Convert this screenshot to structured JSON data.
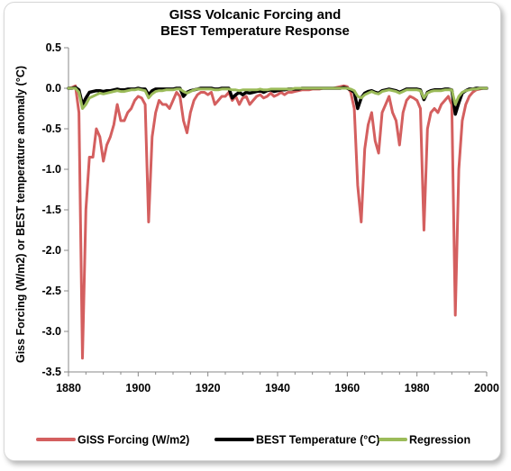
{
  "chart_data": {
    "type": "line",
    "title": [
      "GISS Volcanic Forcing and",
      "BEST Temperature Response"
    ],
    "xlabel": "",
    "ylabel": "Giss Forcing (W/m2) or BEST temperature anomaly (°C)",
    "xlim": [
      1880,
      2000
    ],
    "ylim": [
      -3.5,
      0.5
    ],
    "xticks": [
      1880,
      1900,
      1920,
      1940,
      1960,
      1980,
      2000
    ],
    "yticks": [
      0.5,
      0.0,
      -0.5,
      -1.0,
      -1.5,
      -2.0,
      -2.5,
      -3.0,
      -3.5
    ],
    "ytick_labels": [
      "0.5",
      "0.0",
      "-0.5",
      "-1.0",
      "-1.5",
      "-2.0",
      "-2.5",
      "-3.0",
      "-3.5"
    ],
    "grid": false,
    "legend_position": "bottom",
    "series": [
      {
        "name": "GISS Forcing (W/m2)",
        "color": "#d45f5f",
        "x": [
          1880,
          1881,
          1882,
          1883,
          1884,
          1885,
          1886,
          1887,
          1888,
          1889,
          1890,
          1891,
          1892,
          1893,
          1894,
          1895,
          1896,
          1897,
          1898,
          1899,
          1900,
          1901,
          1902,
          1903,
          1904,
          1905,
          1906,
          1907,
          1908,
          1909,
          1910,
          1911,
          1912,
          1913,
          1914,
          1915,
          1916,
          1917,
          1918,
          1919,
          1920,
          1921,
          1922,
          1923,
          1924,
          1925,
          1926,
          1927,
          1928,
          1929,
          1930,
          1931,
          1932,
          1933,
          1934,
          1935,
          1936,
          1937,
          1938,
          1939,
          1940,
          1941,
          1942,
          1943,
          1944,
          1945,
          1946,
          1947,
          1948,
          1949,
          1950,
          1951,
          1952,
          1953,
          1954,
          1955,
          1956,
          1957,
          1958,
          1959,
          1960,
          1961,
          1962,
          1963,
          1964,
          1965,
          1966,
          1967,
          1968,
          1969,
          1970,
          1971,
          1972,
          1973,
          1974,
          1975,
          1976,
          1977,
          1978,
          1979,
          1980,
          1981,
          1982,
          1983,
          1984,
          1985,
          1986,
          1987,
          1988,
          1989,
          1990,
          1991,
          1992,
          1993,
          1994,
          1995,
          1996,
          1997,
          1998,
          1999,
          2000
        ],
        "values": [
          0.0,
          0.01,
          0.03,
          -0.3,
          -3.33,
          -1.5,
          -0.85,
          -0.85,
          -0.5,
          -0.6,
          -0.9,
          -0.7,
          -0.6,
          -0.45,
          -0.2,
          -0.4,
          -0.4,
          -0.3,
          -0.25,
          -0.15,
          -0.1,
          -0.12,
          -0.2,
          -1.65,
          -0.6,
          -0.3,
          -0.15,
          -0.2,
          -0.2,
          -0.25,
          -0.15,
          -0.05,
          -0.1,
          -0.4,
          -0.55,
          -0.3,
          -0.15,
          -0.08,
          -0.05,
          -0.05,
          -0.08,
          -0.05,
          -0.2,
          -0.15,
          -0.1,
          -0.1,
          -0.05,
          -0.15,
          -0.1,
          -0.2,
          -0.12,
          -0.1,
          -0.2,
          -0.15,
          -0.1,
          -0.08,
          -0.12,
          -0.1,
          -0.06,
          -0.1,
          -0.08,
          -0.05,
          -0.08,
          -0.05,
          -0.05,
          -0.04,
          -0.03,
          -0.02,
          -0.02,
          -0.02,
          -0.01,
          -0.01,
          -0.01,
          0.0,
          0.0,
          0.0,
          0.0,
          0.01,
          0.02,
          0.03,
          0.02,
          -0.05,
          -0.25,
          -1.2,
          -1.65,
          -0.75,
          -0.45,
          -0.3,
          -0.65,
          -0.8,
          -0.3,
          -0.2,
          -0.1,
          -0.3,
          -0.4,
          -0.7,
          -0.3,
          -0.15,
          -0.1,
          -0.12,
          -0.15,
          -0.25,
          -1.75,
          -0.5,
          -0.3,
          -0.25,
          -0.3,
          -0.2,
          -0.15,
          -0.1,
          -0.2,
          -2.8,
          -1.0,
          -0.4,
          -0.2,
          -0.1,
          -0.05,
          -0.02,
          -0.01,
          0.0,
          0.0
        ]
      },
      {
        "name": "BEST Temperature (°C)",
        "color": "#000000",
        "x": [
          1880,
          1881,
          1882,
          1883,
          1884,
          1885,
          1886,
          1887,
          1888,
          1889,
          1890,
          1891,
          1892,
          1893,
          1894,
          1895,
          1896,
          1897,
          1898,
          1899,
          1900,
          1901,
          1902,
          1903,
          1904,
          1905,
          1906,
          1907,
          1908,
          1909,
          1910,
          1911,
          1912,
          1913,
          1914,
          1915,
          1916,
          1917,
          1918,
          1919,
          1920,
          1921,
          1922,
          1923,
          1924,
          1925,
          1926,
          1927,
          1928,
          1929,
          1930,
          1931,
          1932,
          1933,
          1934,
          1935,
          1936,
          1937,
          1938,
          1939,
          1940,
          1941,
          1942,
          1943,
          1944,
          1945,
          1946,
          1947,
          1948,
          1949,
          1950,
          1951,
          1952,
          1953,
          1954,
          1955,
          1956,
          1957,
          1958,
          1959,
          1960,
          1961,
          1962,
          1963,
          1964,
          1965,
          1966,
          1967,
          1968,
          1969,
          1970,
          1971,
          1972,
          1973,
          1974,
          1975,
          1976,
          1977,
          1978,
          1979,
          1980,
          1981,
          1982,
          1983,
          1984,
          1985,
          1986,
          1987,
          1988,
          1989,
          1990,
          1991,
          1992,
          1993,
          1994,
          1995,
          1996,
          1997,
          1998,
          1999,
          2000
        ],
        "values": [
          0.0,
          0.0,
          0.01,
          -0.02,
          -0.2,
          -0.12,
          -0.05,
          -0.04,
          -0.03,
          -0.03,
          -0.04,
          -0.03,
          -0.03,
          -0.02,
          -0.01,
          -0.02,
          -0.02,
          -0.01,
          -0.01,
          -0.01,
          0.0,
          -0.01,
          -0.01,
          -0.08,
          -0.03,
          -0.01,
          -0.01,
          -0.01,
          -0.01,
          -0.01,
          -0.01,
          0.0,
          0.0,
          -0.1,
          -0.05,
          -0.03,
          -0.02,
          -0.01,
          0.0,
          0.0,
          0.0,
          0.0,
          -0.01,
          -0.01,
          0.0,
          0.0,
          0.0,
          -0.12,
          -0.08,
          -0.05,
          -0.08,
          -0.05,
          -0.06,
          -0.05,
          -0.04,
          -0.03,
          -0.05,
          -0.03,
          -0.02,
          -0.04,
          -0.03,
          -0.02,
          -0.02,
          -0.01,
          -0.01,
          -0.01,
          -0.01,
          0.0,
          0.0,
          0.0,
          0.0,
          0.0,
          0.0,
          0.0,
          0.0,
          0.0,
          0.0,
          0.0,
          0.0,
          0.01,
          0.0,
          -0.02,
          -0.05,
          -0.25,
          -0.12,
          -0.06,
          -0.04,
          -0.03,
          -0.05,
          -0.06,
          -0.03,
          -0.02,
          -0.01,
          -0.02,
          -0.03,
          -0.05,
          -0.03,
          -0.01,
          -0.01,
          -0.01,
          -0.01,
          -0.02,
          -0.14,
          -0.05,
          -0.03,
          -0.02,
          -0.02,
          -0.02,
          -0.01,
          -0.01,
          -0.02,
          -0.32,
          -0.18,
          -0.06,
          -0.03,
          -0.01,
          -0.01,
          0.0,
          0.0,
          0.0,
          0.0
        ]
      },
      {
        "name": "Regression",
        "color": "#9bbb59",
        "x": [
          1880,
          1881,
          1882,
          1883,
          1884,
          1885,
          1886,
          1887,
          1888,
          1889,
          1890,
          1891,
          1892,
          1893,
          1894,
          1895,
          1896,
          1897,
          1898,
          1899,
          1900,
          1901,
          1902,
          1903,
          1904,
          1905,
          1906,
          1907,
          1908,
          1909,
          1910,
          1911,
          1912,
          1913,
          1914,
          1915,
          1916,
          1917,
          1918,
          1919,
          1920,
          1921,
          1922,
          1923,
          1924,
          1925,
          1926,
          1927,
          1928,
          1929,
          1930,
          1931,
          1932,
          1933,
          1934,
          1935,
          1936,
          1937,
          1938,
          1939,
          1940,
          1941,
          1942,
          1943,
          1944,
          1945,
          1946,
          1947,
          1948,
          1949,
          1950,
          1951,
          1952,
          1953,
          1954,
          1955,
          1956,
          1957,
          1958,
          1959,
          1960,
          1961,
          1962,
          1963,
          1964,
          1965,
          1966,
          1967,
          1968,
          1969,
          1970,
          1971,
          1972,
          1973,
          1974,
          1975,
          1976,
          1977,
          1978,
          1979,
          1980,
          1981,
          1982,
          1983,
          1984,
          1985,
          1986,
          1987,
          1988,
          1989,
          1990,
          1991,
          1992,
          1993,
          1994,
          1995,
          1996,
          1997,
          1998,
          1999,
          2000
        ],
        "values": [
          0.0,
          0.0,
          0.0,
          -0.05,
          -0.25,
          -0.2,
          -0.12,
          -0.1,
          -0.08,
          -0.06,
          -0.07,
          -0.06,
          -0.05,
          -0.04,
          -0.03,
          -0.04,
          -0.04,
          -0.03,
          -0.02,
          -0.02,
          -0.01,
          -0.02,
          -0.03,
          -0.12,
          -0.07,
          -0.04,
          -0.03,
          -0.03,
          -0.02,
          -0.02,
          -0.02,
          -0.01,
          -0.01,
          -0.04,
          -0.06,
          -0.04,
          -0.02,
          -0.01,
          -0.01,
          -0.01,
          -0.01,
          -0.01,
          -0.02,
          -0.02,
          -0.01,
          -0.01,
          -0.01,
          -0.02,
          -0.02,
          -0.03,
          -0.02,
          -0.02,
          -0.02,
          -0.02,
          -0.02,
          -0.01,
          -0.02,
          -0.02,
          -0.01,
          -0.01,
          -0.01,
          -0.01,
          -0.01,
          -0.01,
          -0.01,
          0.0,
          0.0,
          0.0,
          0.0,
          0.0,
          0.0,
          0.0,
          0.0,
          0.0,
          0.0,
          0.0,
          0.0,
          0.0,
          0.0,
          0.0,
          0.0,
          -0.01,
          -0.03,
          -0.1,
          -0.12,
          -0.08,
          -0.06,
          -0.04,
          -0.06,
          -0.07,
          -0.04,
          -0.03,
          -0.02,
          -0.03,
          -0.04,
          -0.06,
          -0.04,
          -0.02,
          -0.02,
          -0.02,
          -0.02,
          -0.03,
          -0.12,
          -0.06,
          -0.04,
          -0.03,
          -0.03,
          -0.03,
          -0.02,
          -0.02,
          -0.02,
          -0.2,
          -0.1,
          -0.05,
          -0.03,
          -0.02,
          -0.01,
          -0.01,
          0.0,
          0.0,
          0.0
        ]
      }
    ]
  }
}
